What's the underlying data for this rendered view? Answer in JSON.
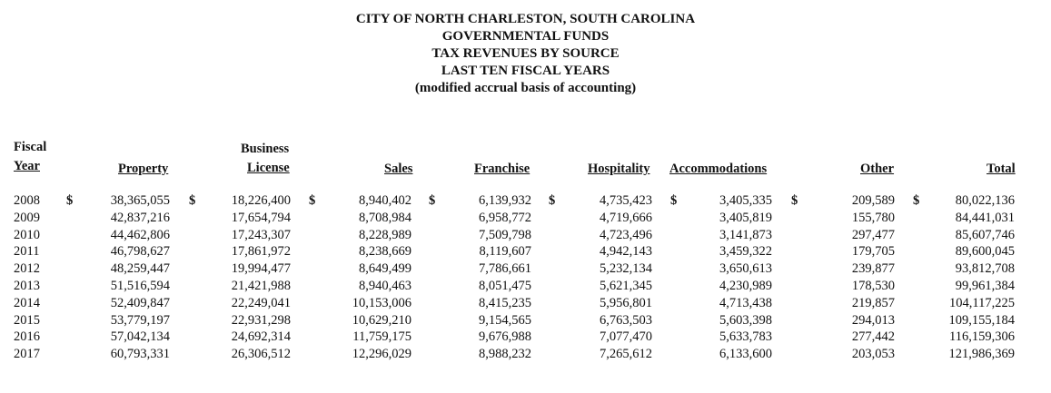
{
  "title": {
    "line1": "CITY OF NORTH CHARLESTON, SOUTH CAROLINA",
    "line2": "GOVERNMENTAL FUNDS",
    "line3": "TAX REVENUES BY SOURCE",
    "line4": "LAST TEN FISCAL YEARS",
    "line5": "(modified accrual basis of accounting)"
  },
  "headers": {
    "fiscal": "Fiscal",
    "year": "Year",
    "property": "Property",
    "business": "Business",
    "license": "License",
    "sales": "Sales",
    "franchise": "Franchise",
    "hospitality": "Hospitality",
    "accommodations": "Accommodations",
    "other": "Other",
    "total": "Total"
  },
  "currency_symbol": "$",
  "rows": [
    {
      "year": "2008",
      "property": "38,365,055",
      "business_license": "18,226,400",
      "sales": "8,940,402",
      "franchise": "6,139,932",
      "hospitality": "4,735,423",
      "accommodations": "3,405,335",
      "other": "209,589",
      "total": "80,022,136"
    },
    {
      "year": "2009",
      "property": "42,837,216",
      "business_license": "17,654,794",
      "sales": "8,708,984",
      "franchise": "6,958,772",
      "hospitality": "4,719,666",
      "accommodations": "3,405,819",
      "other": "155,780",
      "total": "84,441,031"
    },
    {
      "year": "2010",
      "property": "44,462,806",
      "business_license": "17,243,307",
      "sales": "8,228,989",
      "franchise": "7,509,798",
      "hospitality": "4,723,496",
      "accommodations": "3,141,873",
      "other": "297,477",
      "total": "85,607,746"
    },
    {
      "year": "2011",
      "property": "46,798,627",
      "business_license": "17,861,972",
      "sales": "8,238,669",
      "franchise": "8,119,607",
      "hospitality": "4,942,143",
      "accommodations": "3,459,322",
      "other": "179,705",
      "total": "89,600,045"
    },
    {
      "year": "2012",
      "property": "48,259,447",
      "business_license": "19,994,477",
      "sales": "8,649,499",
      "franchise": "7,786,661",
      "hospitality": "5,232,134",
      "accommodations": "3,650,613",
      "other": "239,877",
      "total": "93,812,708"
    },
    {
      "year": "2013",
      "property": "51,516,594",
      "business_license": "21,421,988",
      "sales": "8,940,463",
      "franchise": "8,051,475",
      "hospitality": "5,621,345",
      "accommodations": "4,230,989",
      "other": "178,530",
      "total": "99,961,384"
    },
    {
      "year": "2014",
      "property": "52,409,847",
      "business_license": "22,249,041",
      "sales": "10,153,006",
      "franchise": "8,415,235",
      "hospitality": "5,956,801",
      "accommodations": "4,713,438",
      "other": "219,857",
      "total": "104,117,225"
    },
    {
      "year": "2015",
      "property": "53,779,197",
      "business_license": "22,931,298",
      "sales": "10,629,210",
      "franchise": "9,154,565",
      "hospitality": "6,763,503",
      "accommodations": "5,603,398",
      "other": "294,013",
      "total": "109,155,184"
    },
    {
      "year": "2016",
      "property": "57,042,134",
      "business_license": "24,692,314",
      "sales": "11,759,175",
      "franchise": "9,676,988",
      "hospitality": "7,077,470",
      "accommodations": "5,633,783",
      "other": "277,442",
      "total": "116,159,306"
    },
    {
      "year": "2017",
      "property": "60,793,331",
      "business_license": "26,306,512",
      "sales": "12,296,029",
      "franchise": "8,988,232",
      "hospitality": "7,265,612",
      "accommodations": "6,133,600",
      "other": "203,053",
      "total": "121,986,369"
    }
  ]
}
